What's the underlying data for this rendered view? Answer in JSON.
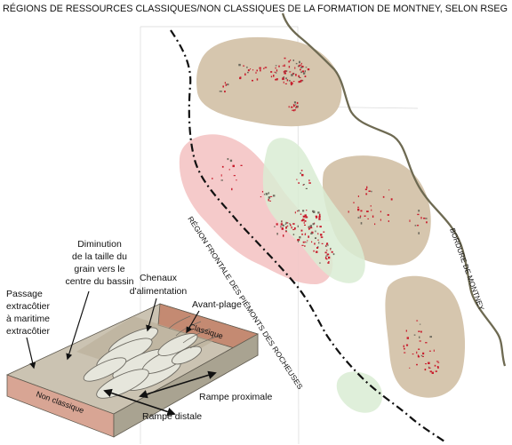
{
  "title": "RÉGIONS DE RESSOURCES CLASSIQUES/NON CLASSIQUES DE LA FORMATION DE MONTNEY, SELON RSEG",
  "map": {
    "boundary_label": "BORDURE DE MONTNEY",
    "foothills_label": "RÉGION FRONTALE DES PIÉMONTS DES ROCHEUSES",
    "colors": {
      "classic_region": "#d6c6ae",
      "unconventional_region": "#f4c4c4",
      "transition_region": "#d9ecd3",
      "wells": "#c81c2c",
      "boundary_line": "#6e6a52"
    }
  },
  "diagram": {
    "labels": {
      "grain_size": [
        "Diminution",
        "de la taille du",
        "grain vers le",
        "centre du bassin"
      ],
      "channels": [
        "Chenaux",
        "d'alimentation"
      ],
      "offshore": [
        "Passage",
        "extracôtier",
        "à maritime",
        "extracôtier"
      ],
      "shoreface": "Avant-plage",
      "classic": "Classique",
      "non_classic": "Non classique",
      "proximal_ramp": "Rampe proximale",
      "distal_ramp": "Rampe distale"
    },
    "colors": {
      "top": "#cbc3b2",
      "classic_face": "#c48a72",
      "non_classic_face": "#d8a594",
      "side": "#a9a391",
      "lobes": "#e6e6dc"
    }
  }
}
